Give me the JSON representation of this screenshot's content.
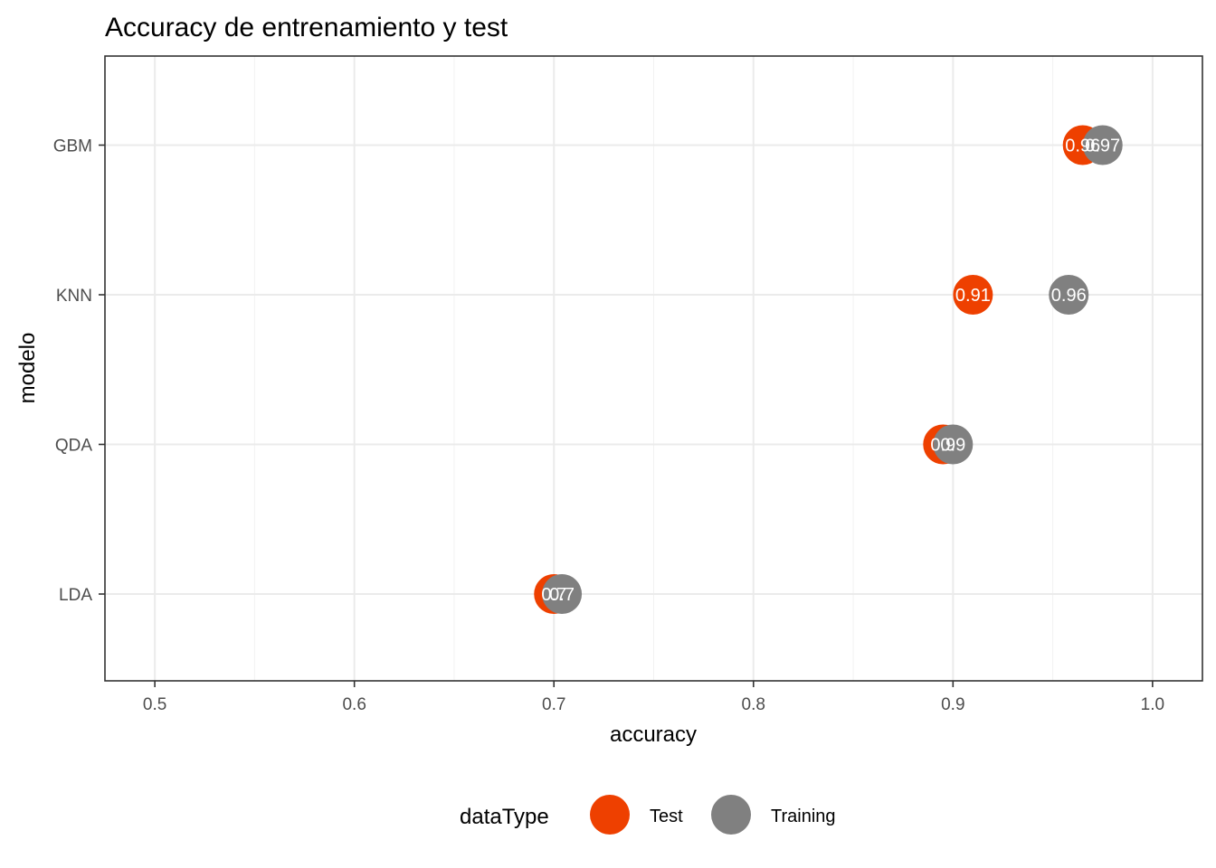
{
  "chart_data": {
    "type": "scatter",
    "title": "Accuracy de entrenamiento y test",
    "xlabel": "accuracy",
    "ylabel": "modelo",
    "xlim": [
      0.475,
      1.025
    ],
    "xticks": [
      0.5,
      0.6,
      0.7,
      0.8,
      0.9,
      1.0
    ],
    "xtick_labels": [
      "0.5",
      "0.6",
      "0.7",
      "0.8",
      "0.9",
      "1.0"
    ],
    "categories": [
      "GBM",
      "KNN",
      "QDA",
      "LDA"
    ],
    "grid": true,
    "legend": {
      "title": "dataType",
      "position": "bottom"
    },
    "series": [
      {
        "name": "Test",
        "color": "#EE4000",
        "points": [
          {
            "model": "GBM",
            "accuracy": 0.965,
            "label": "0.96"
          },
          {
            "model": "KNN",
            "accuracy": 0.91,
            "label": "0.91"
          },
          {
            "model": "QDA",
            "accuracy": 0.895,
            "label": "0.9"
          },
          {
            "model": "LDA",
            "accuracy": 0.7,
            "label": "0.7"
          }
        ]
      },
      {
        "name": "Training",
        "color": "#808080",
        "points": [
          {
            "model": "GBM",
            "accuracy": 0.975,
            "label": "0.97"
          },
          {
            "model": "KNN",
            "accuracy": 0.958,
            "label": "0.96"
          },
          {
            "model": "QDA",
            "accuracy": 0.9,
            "label": "0.9"
          },
          {
            "model": "LDA",
            "accuracy": 0.704,
            "label": "0.7"
          }
        ]
      }
    ]
  }
}
